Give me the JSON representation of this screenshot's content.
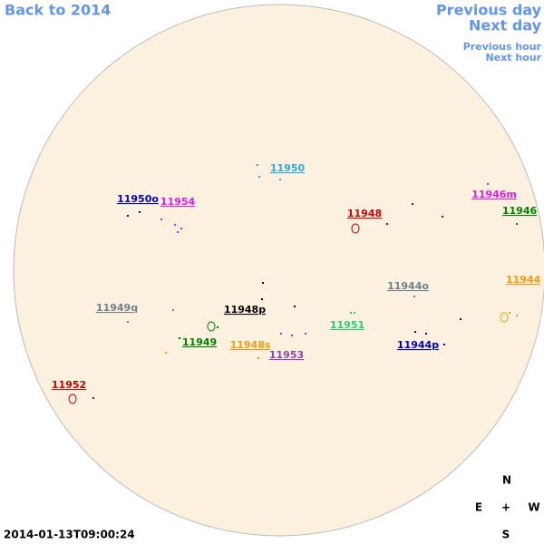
{
  "nav": {
    "back": "Back to 2014",
    "previous_day": "Previous day",
    "next_day": "Next day",
    "previous_hour": "Previous hour",
    "next_hour": "Next hour"
  },
  "regions": [
    {
      "label": "11950",
      "color": "#29abe2"
    },
    {
      "label": "11950o",
      "color": "#0000cc"
    },
    {
      "label": "11954",
      "color": "#e020e0"
    },
    {
      "label": "11946m",
      "color": "#e020e0"
    },
    {
      "label": "11948",
      "color": "#cc0000"
    },
    {
      "label": "11946",
      "color": "#008000"
    },
    {
      "label": "11944o",
      "color": "#708090"
    },
    {
      "label": "11944",
      "color": "#f39c12"
    },
    {
      "label": "11949q",
      "color": "#708090"
    },
    {
      "label": "11948p",
      "color": "#000000"
    },
    {
      "label": "11951",
      "color": "#2ecc71"
    },
    {
      "label": "11949",
      "color": "#008000"
    },
    {
      "label": "11948s",
      "color": "#f39c12"
    },
    {
      "label": "11944p",
      "color": "#0000cc"
    },
    {
      "label": "11953",
      "color": "#8e44ad"
    },
    {
      "label": "11952",
      "color": "#cc0000"
    }
  ],
  "compass": {
    "north": "N",
    "east": "E",
    "center": "+",
    "west": "W",
    "south": "S"
  },
  "timestamp": "2014-01-13T09:00:24"
}
